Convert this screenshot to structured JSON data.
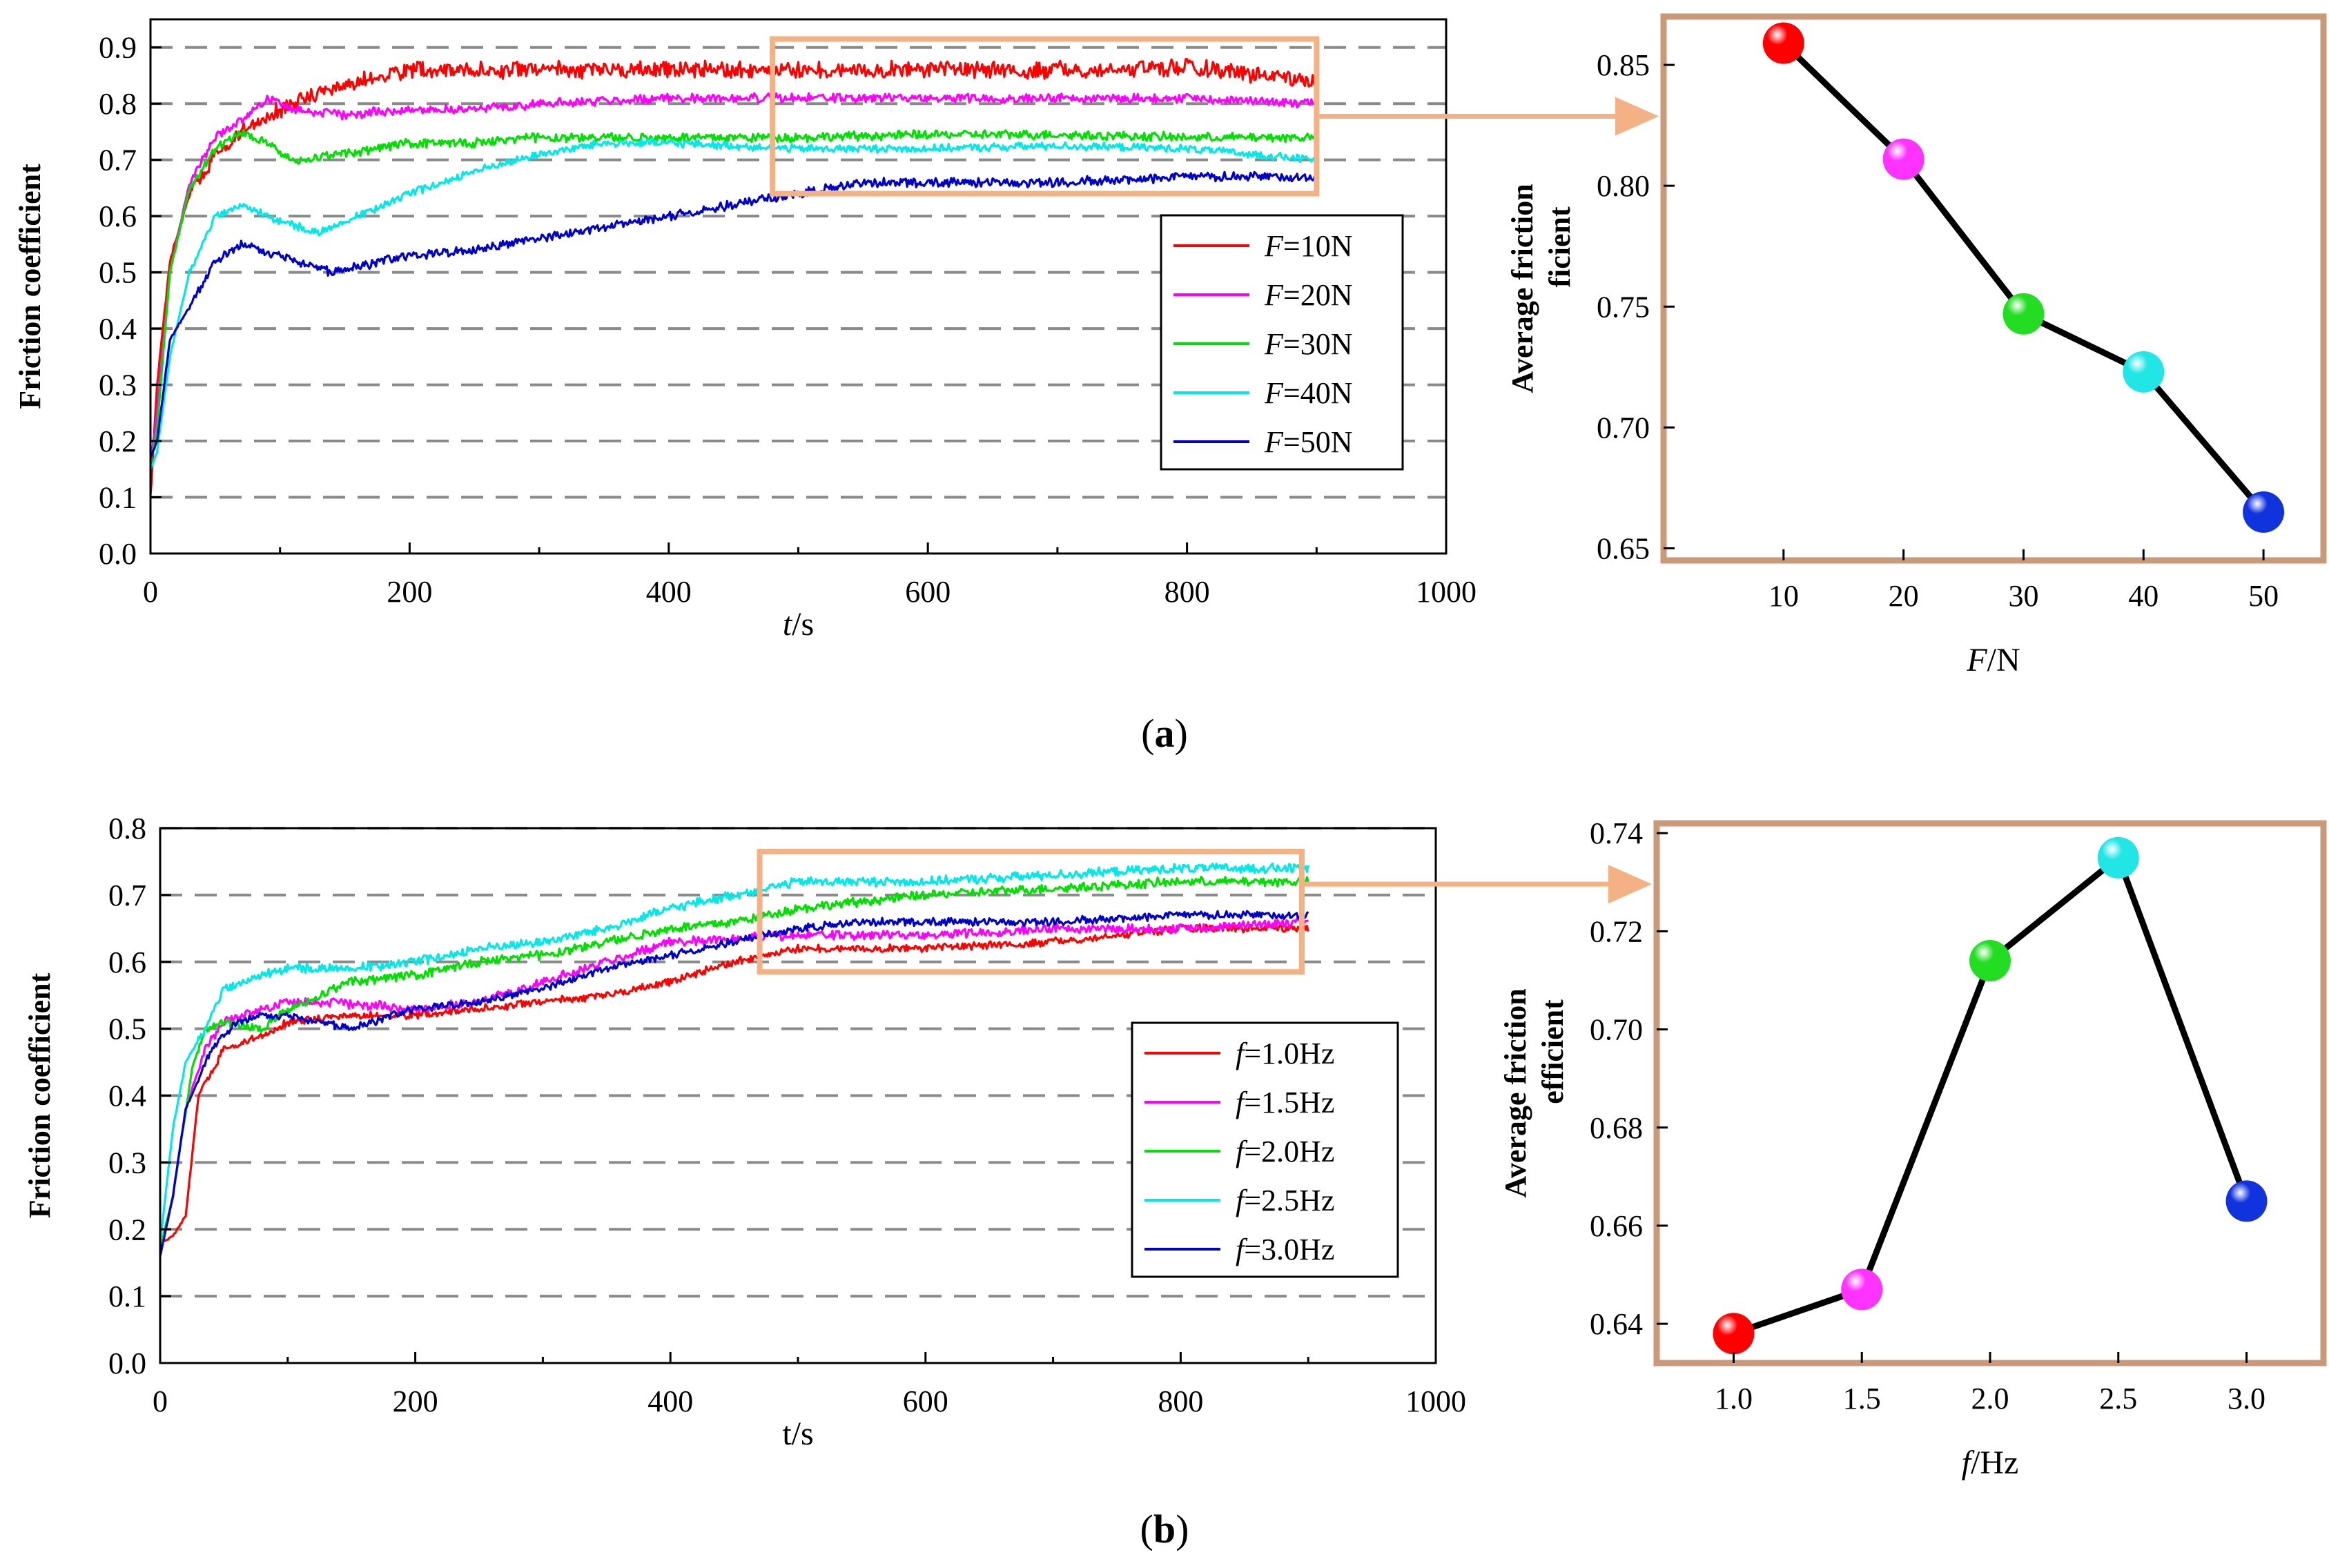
{
  "chart_data": [
    {
      "panel": "a-left",
      "type": "line",
      "ylabel": "Friction coefficient",
      "xlabel_italic": "t",
      "xlabel_rest": "/s",
      "xlim": [
        0,
        1000
      ],
      "ylim": [
        0,
        0.95
      ],
      "xticks": [
        0,
        200,
        400,
        600,
        800,
        1000
      ],
      "yticks": [
        0,
        0.1,
        0.2,
        0.3,
        0.4,
        0.5,
        0.6,
        0.7,
        0.8,
        0.9
      ],
      "tick_labels_x": [
        "0",
        "200",
        "400",
        "600",
        "800",
        "1000"
      ],
      "tick_labels_y": [
        "0.0",
        "0.1",
        "0.2",
        "0.3",
        "0.4",
        "0.5",
        "0.6",
        "0.7",
        "0.8",
        "0.9"
      ],
      "grid": "horizontal-dashed",
      "zoom_box": {
        "x": [
          480,
          900
        ],
        "y": [
          0.64,
          0.915
        ]
      },
      "series": [
        {
          "name": "F=10N",
          "italic": "F",
          "rest": "=10N",
          "color": "#ff0000",
          "noise": 0.013,
          "x": [
            0,
            5,
            15,
            30,
            50,
            70,
            90,
            120,
            160,
            200,
            250,
            300,
            400,
            500,
            600,
            700,
            800,
            900
          ],
          "y": [
            0.1,
            0.3,
            0.52,
            0.64,
            0.71,
            0.75,
            0.78,
            0.81,
            0.84,
            0.86,
            0.86,
            0.86,
            0.86,
            0.86,
            0.86,
            0.86,
            0.865,
            0.84
          ]
        },
        {
          "name": "F=20N",
          "italic": "F",
          "rest": "=20N",
          "color": "#ff00ff",
          "noise": 0.007,
          "x": [
            0,
            5,
            15,
            30,
            50,
            70,
            90,
            110,
            150,
            200,
            250,
            300,
            400,
            500,
            600,
            700,
            800,
            900
          ],
          "y": [
            0.16,
            0.25,
            0.5,
            0.66,
            0.74,
            0.77,
            0.81,
            0.79,
            0.78,
            0.79,
            0.79,
            0.8,
            0.81,
            0.81,
            0.81,
            0.81,
            0.81,
            0.8
          ]
        },
        {
          "name": "F=30N",
          "italic": "F",
          "rest": "=30N",
          "color": "#00e000",
          "noise": 0.007,
          "x": [
            0,
            5,
            15,
            30,
            50,
            70,
            90,
            110,
            150,
            200,
            250,
            300,
            400,
            500,
            600,
            700,
            800,
            900
          ],
          "y": [
            0.16,
            0.22,
            0.5,
            0.65,
            0.72,
            0.75,
            0.73,
            0.7,
            0.71,
            0.73,
            0.73,
            0.74,
            0.74,
            0.74,
            0.745,
            0.745,
            0.74,
            0.74
          ]
        },
        {
          "name": "F=40N",
          "italic": "F",
          "rest": "=40N",
          "color": "#00e8e8",
          "noise": 0.006,
          "x": [
            0,
            5,
            15,
            30,
            50,
            70,
            100,
            130,
            150,
            200,
            250,
            300,
            350,
            400,
            500,
            600,
            700,
            800,
            900
          ],
          "y": [
            0.15,
            0.18,
            0.35,
            0.5,
            0.6,
            0.62,
            0.59,
            0.57,
            0.59,
            0.64,
            0.68,
            0.71,
            0.73,
            0.73,
            0.72,
            0.72,
            0.725,
            0.72,
            0.7
          ]
        },
        {
          "name": "F=50N",
          "italic": "F",
          "rest": "=50N",
          "color": "#0000cc",
          "noise": 0.007,
          "x": [
            0,
            5,
            15,
            30,
            50,
            70,
            100,
            140,
            200,
            250,
            300,
            350,
            400,
            450,
            500,
            550,
            600,
            700,
            800,
            900
          ],
          "y": [
            0.17,
            0.2,
            0.38,
            0.44,
            0.52,
            0.55,
            0.53,
            0.5,
            0.53,
            0.54,
            0.56,
            0.58,
            0.6,
            0.62,
            0.64,
            0.66,
            0.66,
            0.66,
            0.67,
            0.67
          ]
        }
      ]
    },
    {
      "panel": "a-right",
      "type": "line",
      "ylabel_line1": "Average friction",
      "ylabel_line2": "ficient",
      "xlabel_italic": "F",
      "xlabel_rest": "/N",
      "xlim": [
        0,
        55
      ],
      "ylim": [
        0.645,
        0.87
      ],
      "xticks": [
        10,
        20,
        30,
        40,
        50
      ],
      "yticks": [
        0.65,
        0.7,
        0.75,
        0.8,
        0.85
      ],
      "tick_labels_x": [
        "10",
        "20",
        "30",
        "40",
        "50"
      ],
      "tick_labels_y": [
        "0.65",
        "0.70",
        "0.75",
        "0.80",
        "0.85"
      ],
      "x": [
        10,
        20,
        30,
        40,
        50
      ],
      "values": [
        0.859,
        0.811,
        0.747,
        0.723,
        0.665
      ],
      "marker_colors": [
        "#ff0000",
        "#ff33ff",
        "#22dd22",
        "#22e6e6",
        "#1133dd"
      ]
    },
    {
      "panel": "b-left",
      "type": "line",
      "ylabel": "Friction coefficient",
      "xlabel_italic": "",
      "xlabel_rest": "t/s",
      "xlim": [
        0,
        1000
      ],
      "ylim": [
        0,
        0.8
      ],
      "xticks": [
        0,
        200,
        400,
        600,
        800,
        1000
      ],
      "yticks": [
        0,
        0.1,
        0.2,
        0.3,
        0.4,
        0.5,
        0.6,
        0.7,
        0.8
      ],
      "tick_labels_x": [
        "0",
        "200",
        "400",
        "600",
        "800",
        "1000"
      ],
      "tick_labels_y": [
        "0.0",
        "0.1",
        "0.2",
        "0.3",
        "0.4",
        "0.5",
        "0.6",
        "0.7",
        "0.8"
      ],
      "grid": "horizontal-dashed",
      "zoom_box": {
        "x": [
          470,
          895
        ],
        "y": [
          0.585,
          0.765
        ]
      },
      "series": [
        {
          "name": "f=1.0Hz",
          "italic": "f",
          "rest": "=1.0Hz",
          "color": "#ff0000",
          "noise": 0.005,
          "x": [
            0,
            10,
            20,
            30,
            50,
            80,
            100,
            150,
            200,
            250,
            300,
            350,
            400,
            450,
            500,
            600,
            700,
            800,
            900
          ],
          "y": [
            0.18,
            0.19,
            0.22,
            0.4,
            0.47,
            0.49,
            0.51,
            0.52,
            0.52,
            0.53,
            0.54,
            0.55,
            0.57,
            0.6,
            0.62,
            0.62,
            0.63,
            0.65,
            0.65
          ]
        },
        {
          "name": "f=1.5Hz",
          "italic": "f",
          "rest": "=1.5Hz",
          "color": "#ff00ff",
          "noise": 0.006,
          "x": [
            0,
            10,
            20,
            35,
            50,
            80,
            100,
            130,
            200,
            250,
            300,
            350,
            400,
            500,
            600,
            700,
            800,
            900
          ],
          "y": [
            0.16,
            0.25,
            0.38,
            0.47,
            0.51,
            0.53,
            0.54,
            0.54,
            0.53,
            0.54,
            0.57,
            0.6,
            0.63,
            0.64,
            0.64,
            0.65,
            0.65,
            0.66
          ]
        },
        {
          "name": "f=2.0Hz",
          "italic": "f",
          "rest": "=2.0Hz",
          "color": "#00e000",
          "noise": 0.006,
          "x": [
            0,
            10,
            25,
            35,
            50,
            80,
            100,
            150,
            200,
            250,
            300,
            350,
            400,
            450,
            500,
            600,
            700,
            800,
            900
          ],
          "y": [
            0.17,
            0.25,
            0.44,
            0.5,
            0.51,
            0.5,
            0.53,
            0.57,
            0.58,
            0.6,
            0.61,
            0.63,
            0.65,
            0.66,
            0.68,
            0.7,
            0.71,
            0.72,
            0.72
          ]
        },
        {
          "name": "f=2.5Hz",
          "italic": "f",
          "rest": "=2.5Hz",
          "color": "#00e8e8",
          "noise": 0.006,
          "x": [
            0,
            10,
            20,
            35,
            50,
            80,
            100,
            150,
            200,
            250,
            300,
            350,
            400,
            450,
            500,
            600,
            700,
            800,
            900
          ],
          "y": [
            0.18,
            0.35,
            0.45,
            0.5,
            0.56,
            0.58,
            0.59,
            0.59,
            0.6,
            0.62,
            0.63,
            0.65,
            0.68,
            0.7,
            0.72,
            0.72,
            0.73,
            0.74,
            0.74
          ]
        },
        {
          "name": "f=3.0Hz",
          "italic": "f",
          "rest": "=3.0Hz",
          "color": "#0000cc",
          "noise": 0.005,
          "x": [
            0,
            10,
            20,
            40,
            60,
            80,
            100,
            150,
            200,
            250,
            300,
            350,
            400,
            450,
            500,
            550,
            600,
            700,
            800,
            900
          ],
          "y": [
            0.16,
            0.25,
            0.38,
            0.47,
            0.51,
            0.52,
            0.52,
            0.5,
            0.53,
            0.54,
            0.56,
            0.59,
            0.61,
            0.63,
            0.65,
            0.66,
            0.66,
            0.66,
            0.67,
            0.67
          ]
        }
      ]
    },
    {
      "panel": "b-right",
      "type": "line",
      "ylabel_line1": "Average friction",
      "ylabel_line2": "efficient",
      "xlabel_italic": "f",
      "xlabel_rest": "/Hz",
      "xlim": [
        0.7,
        3.3
      ],
      "ylim": [
        0.632,
        0.742
      ],
      "xticks": [
        1.0,
        1.5,
        2.0,
        2.5,
        3.0
      ],
      "yticks": [
        0.64,
        0.66,
        0.68,
        0.7,
        0.72,
        0.74
      ],
      "tick_labels_x": [
        "1.0",
        "1.5",
        "2.0",
        "2.5",
        "3.0"
      ],
      "tick_labels_y": [
        "0.64",
        "0.66",
        "0.68",
        "0.70",
        "0.72",
        "0.74"
      ],
      "x": [
        1.0,
        1.5,
        2.0,
        2.5,
        3.0
      ],
      "values": [
        0.638,
        0.647,
        0.714,
        0.735,
        0.665
      ],
      "marker_colors": [
        "#ff0000",
        "#ff33ff",
        "#22dd22",
        "#22e6e6",
        "#1133dd"
      ]
    }
  ],
  "captions": {
    "a": "a",
    "b": "b"
  },
  "zoom_color": "#f4b183",
  "box_border_color": "#c9997a"
}
